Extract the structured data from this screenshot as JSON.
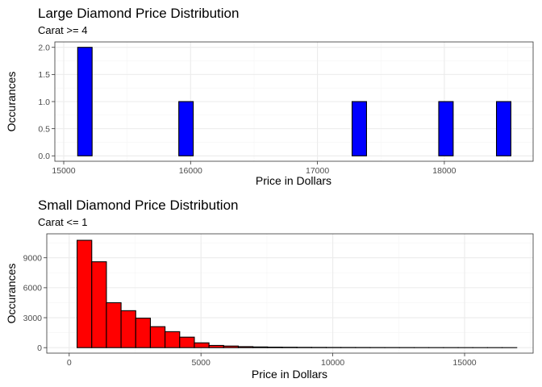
{
  "chart_data": [
    {
      "type": "bar",
      "title": "Large Diamond Price Distribution",
      "subtitle": "Carat >= 4",
      "xlabel": "Price in Dollars",
      "ylabel": "Occurances",
      "fill_color": "#0000FF",
      "grid": true,
      "xlim": [
        14930,
        18700
      ],
      "ylim": [
        -0.1,
        2.1
      ],
      "x_ticks": [
        15000,
        16000,
        17000,
        18000
      ],
      "x_tick_labels": [
        "15000",
        "16000",
        "17000",
        "18000"
      ],
      "y_ticks": [
        0,
        0.5,
        1.0,
        1.5,
        2.0
      ],
      "y_tick_labels": [
        "0.0",
        "0.5",
        "1.0",
        "1.5",
        "2.0"
      ],
      "bin_width": 113.8,
      "bins_start": [
        15110,
        15224,
        15338,
        15452,
        15565,
        15679,
        15793,
        15907,
        16021,
        16135,
        16248,
        16362,
        16476,
        16590,
        16704,
        16817,
        16931,
        17045,
        17159,
        17273,
        17387,
        17500,
        17614,
        17728,
        17842,
        17956,
        18070,
        18183,
        18297,
        18411
      ],
      "values": [
        2,
        0,
        0,
        0,
        0,
        0,
        0,
        1,
        0,
        0,
        0,
        0,
        0,
        0,
        0,
        0,
        0,
        0,
        0,
        1,
        0,
        0,
        0,
        0,
        0,
        1,
        0,
        0,
        0,
        1
      ]
    },
    {
      "type": "bar",
      "title": "Small Diamond Price Distribution",
      "subtitle": "Carat <= 1",
      "xlabel": "Price in Dollars",
      "ylabel": "Occurances",
      "fill_color": "#FF0000",
      "grid": true,
      "xlim": [
        -850,
        17600
      ],
      "ylim": [
        -550,
        11400
      ],
      "x_ticks": [
        0,
        5000,
        10000,
        15000
      ],
      "x_tick_labels": [
        "0",
        "5000",
        "10000",
        "15000"
      ],
      "y_ticks": [
        0,
        3000,
        6000,
        9000
      ],
      "y_tick_labels": [
        "0",
        "3000",
        "6000",
        "9000"
      ],
      "bin_width": 556,
      "bins_start": [
        300,
        856,
        1412,
        1968,
        2524,
        3080,
        3636,
        4192,
        4748,
        5304,
        5860,
        6416,
        6972,
        7528,
        8084,
        8640,
        9196,
        9752,
        10308,
        10864,
        11420,
        11976,
        12532,
        13088,
        13644,
        14200,
        14756,
        15312,
        15868,
        16424
      ],
      "values": [
        10750,
        8600,
        4500,
        3700,
        2950,
        2100,
        1600,
        1050,
        480,
        220,
        160,
        100,
        70,
        50,
        40,
        30,
        25,
        20,
        18,
        15,
        12,
        10,
        8,
        6,
        5,
        4,
        3,
        2,
        2,
        1
      ]
    }
  ]
}
